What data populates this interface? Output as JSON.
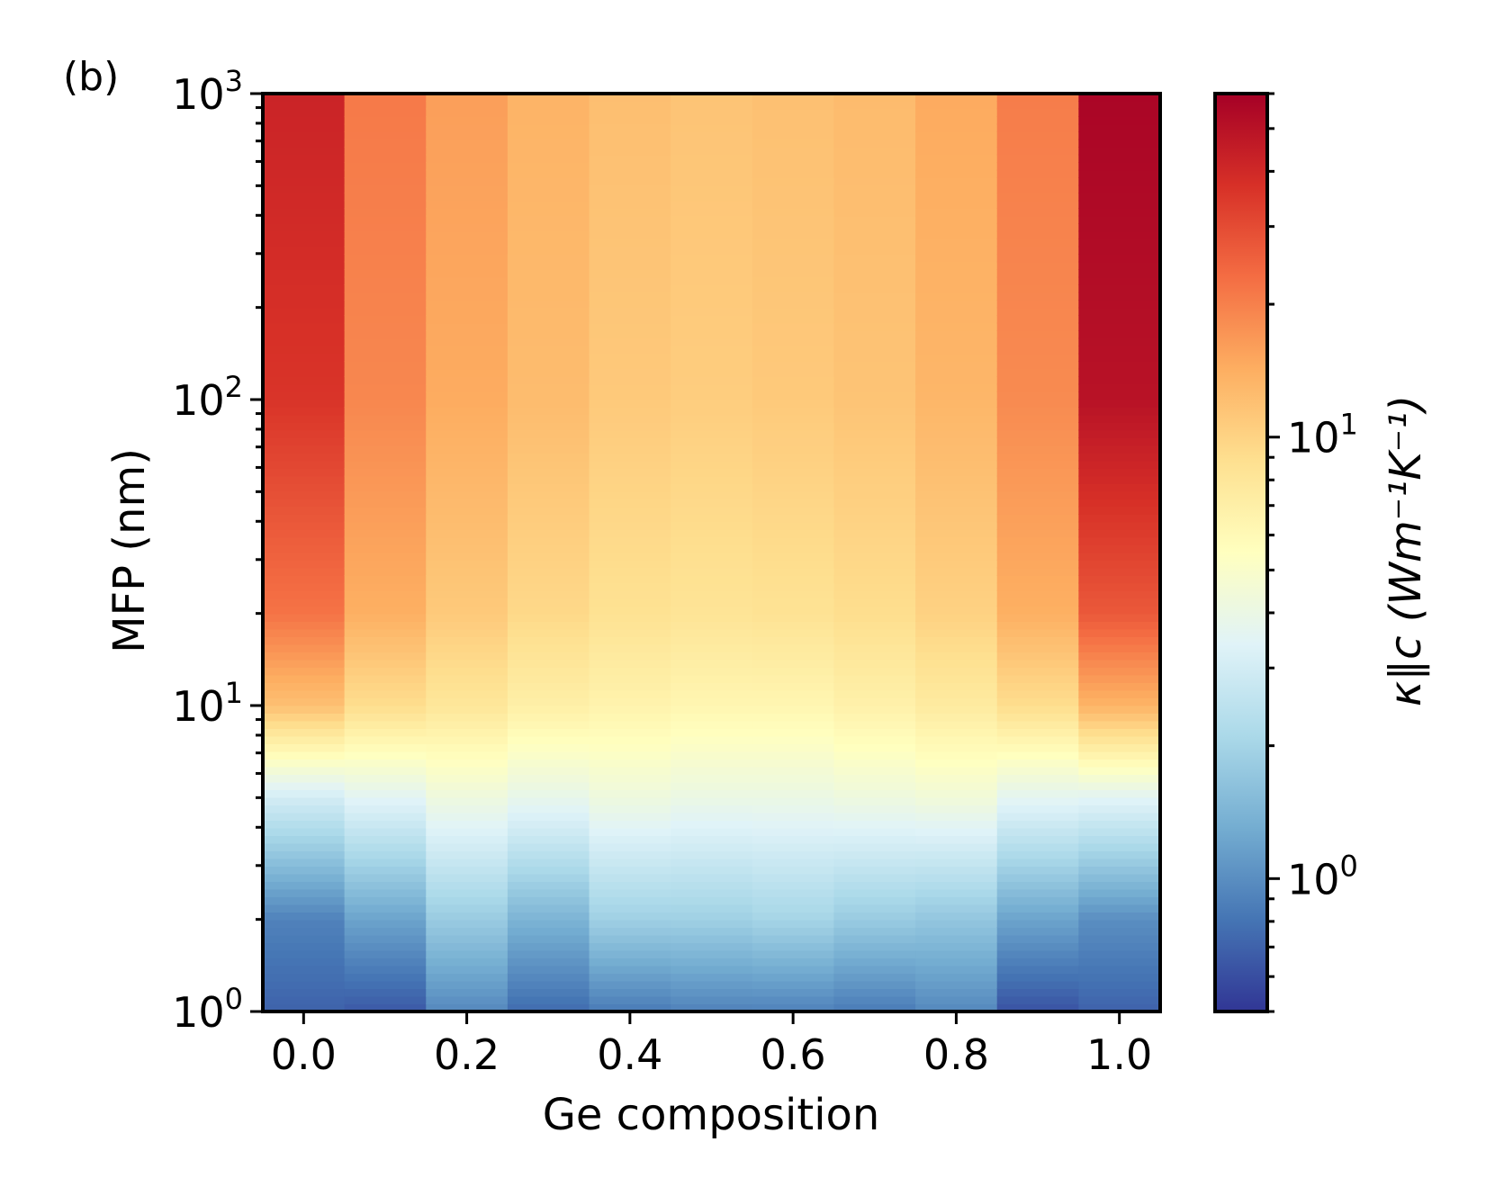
{
  "panel_label": "(b)",
  "chart_data": {
    "type": "heatmap",
    "xlabel": "Ge composition",
    "ylabel": "MFP (nm)",
    "colorbar_label": "κ∥c (Wm⁻¹K⁻¹)",
    "x_categories": [
      0.0,
      0.1,
      0.2,
      0.3,
      0.4,
      0.5,
      0.6,
      0.7,
      0.8,
      0.9,
      1.0
    ],
    "x_ticks": [
      "0.0",
      "0.2",
      "0.4",
      "0.6",
      "0.8",
      "1.0"
    ],
    "xlim": [
      -0.05,
      1.05
    ],
    "y_scale": "log",
    "ylim": [
      1,
      1000
    ],
    "y_ticks": [
      {
        "base": "10",
        "exp": "0",
        "value": 1
      },
      {
        "base": "10",
        "exp": "1",
        "value": 10
      },
      {
        "base": "10",
        "exp": "2",
        "value": 100
      },
      {
        "base": "10",
        "exp": "3",
        "value": 1000
      }
    ],
    "color_scale": "log",
    "colormap": "RdYlBu_r",
    "clim": [
      0.5,
      60
    ],
    "colorbar_ticks": [
      {
        "base": "10",
        "exp": "0",
        "value": 1
      },
      {
        "base": "10",
        "exp": "1",
        "value": 10
      }
    ],
    "mfp_profile_points": [
      1,
      2,
      5,
      10,
      20,
      100,
      1000
    ],
    "kappa_at_mfp": [
      [
        0.7,
        0.9,
        3.0,
        12.0,
        22.0,
        36.0,
        42.0
      ],
      [
        0.65,
        1.2,
        3.5,
        9.0,
        14.0,
        19.0,
        21.0
      ],
      [
        0.95,
        1.8,
        4.2,
        8.0,
        11.0,
        14.5,
        16.0
      ],
      [
        0.75,
        1.4,
        3.8,
        7.0,
        9.5,
        12.5,
        13.5
      ],
      [
        0.85,
        1.9,
        4.2,
        6.6,
        8.6,
        11.0,
        12.2
      ],
      [
        0.9,
        1.9,
        4.0,
        6.3,
        8.3,
        10.6,
        11.6
      ],
      [
        0.9,
        2.0,
        4.0,
        6.3,
        8.5,
        11.0,
        12.0
      ],
      [
        0.85,
        1.8,
        4.2,
        6.8,
        9.0,
        11.6,
        12.6
      ],
      [
        0.95,
        1.7,
        4.4,
        7.5,
        10.2,
        13.2,
        14.6
      ],
      [
        0.62,
        1.2,
        3.6,
        9.0,
        14.0,
        18.5,
        20.5
      ],
      [
        0.7,
        1.0,
        3.5,
        13.5,
        27.0,
        50.0,
        57.0
      ]
    ]
  }
}
